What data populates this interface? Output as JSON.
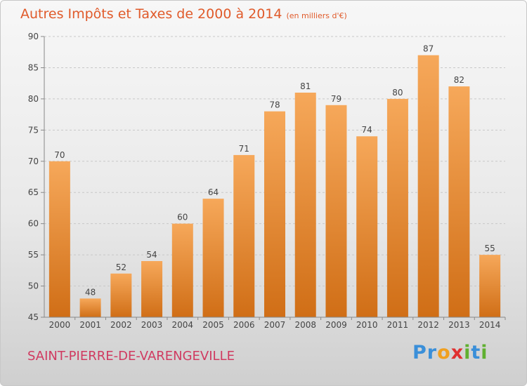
{
  "title": "Autres Impôts et Taxes de 2000 à 2014",
  "unit_note": "(en milliers d'€)",
  "commune": "SAINT-PIERRE-DE-VARENGEVILLE",
  "logo": {
    "letters": [
      "P",
      "r",
      "o",
      "x",
      "i",
      "t",
      "i"
    ],
    "colors": [
      "#3a8fd9",
      "#3a8fd9",
      "#f0a020",
      "#e03030",
      "#60b030",
      "#3a8fd9",
      "#60b030"
    ]
  },
  "colors": {
    "bar_top": "#f6a85a",
    "bar_bottom": "#d06e16",
    "grid": "#c8c8c8",
    "text": "#444444"
  },
  "chart_data": {
    "type": "bar",
    "categories": [
      "2000",
      "2001",
      "2002",
      "2003",
      "2004",
      "2005",
      "2006",
      "2007",
      "2008",
      "2009",
      "2010",
      "2011",
      "2012",
      "2013",
      "2014"
    ],
    "values": [
      70,
      48,
      52,
      54,
      60,
      64,
      71,
      78,
      81,
      79,
      74,
      80,
      87,
      82,
      55
    ],
    "ylim": [
      45,
      90
    ],
    "yticks": [
      45,
      50,
      55,
      60,
      65,
      70,
      75,
      80,
      85,
      90
    ],
    "xlabel": "",
    "ylabel": "",
    "grid": true
  }
}
